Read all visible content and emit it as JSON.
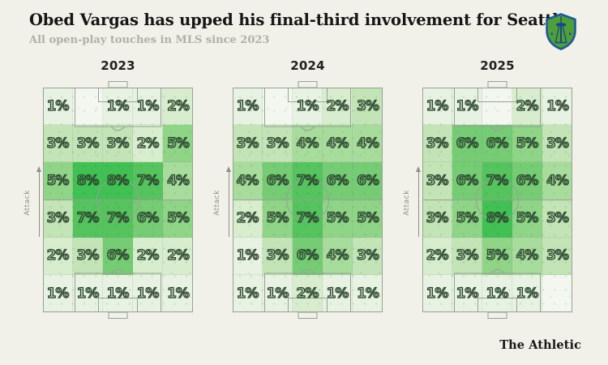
{
  "header": {
    "title": "Obed Vargas has upped his final-third involvement for Seattle",
    "subtitle": "All open-play touches in MLS since 2023"
  },
  "branding": {
    "footer": "The Athletic",
    "team_logo": "seattle-sounders-crest",
    "logo_colors": {
      "shield_fill": "#4F9E3C",
      "shield_stroke": "#1E5A94",
      "needle": "#174A80"
    }
  },
  "pitch": {
    "attack_label": "Attack",
    "line_color": "#96a294",
    "background": "#f1f0e9"
  },
  "color_scale": {
    "blank": "#f3f7f0",
    "1": "#e8f2e2",
    "2": "#d8edce",
    "3": "#c2e4b6",
    "4": "#a8dc9d",
    "5": "#90d488",
    "6": "#76cc74",
    "7": "#55c35e",
    "8": "#41c053"
  },
  "chart_data": [
    {
      "type": "heatmap",
      "title": "2023",
      "unit": "%",
      "orientation": "vertical pitch, attacking upward",
      "rows": 6,
      "cols": 5,
      "values": [
        [
          1,
          null,
          1,
          1,
          2
        ],
        [
          3,
          3,
          3,
          2,
          5
        ],
        [
          5,
          8,
          8,
          7,
          4
        ],
        [
          3,
          7,
          7,
          6,
          5
        ],
        [
          2,
          3,
          6,
          2,
          2
        ],
        [
          1,
          1,
          1,
          1,
          1
        ]
      ]
    },
    {
      "type": "heatmap",
      "title": "2024",
      "unit": "%",
      "orientation": "vertical pitch, attacking upward",
      "rows": 6,
      "cols": 5,
      "values": [
        [
          1,
          null,
          1,
          2,
          3
        ],
        [
          3,
          3,
          4,
          4,
          4
        ],
        [
          4,
          6,
          7,
          6,
          6
        ],
        [
          2,
          5,
          7,
          5,
          5
        ],
        [
          1,
          3,
          6,
          4,
          3
        ],
        [
          1,
          1,
          2,
          1,
          1
        ]
      ]
    },
    {
      "type": "heatmap",
      "title": "2025",
      "unit": "%",
      "orientation": "vertical pitch, attacking upward",
      "rows": 6,
      "cols": 5,
      "values": [
        [
          1,
          1,
          null,
          2,
          1
        ],
        [
          3,
          6,
          6,
          5,
          3
        ],
        [
          3,
          6,
          7,
          6,
          4
        ],
        [
          3,
          5,
          8,
          5,
          3
        ],
        [
          2,
          3,
          5,
          4,
          3
        ],
        [
          1,
          1,
          1,
          1,
          null
        ]
      ]
    }
  ]
}
